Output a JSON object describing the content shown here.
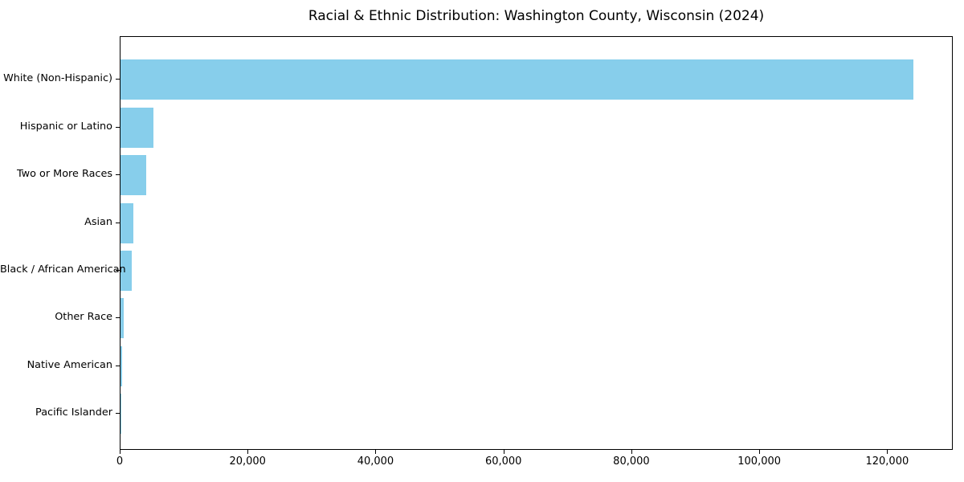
{
  "title": "Racial & Ethnic Distribution: Washington County, Wisconsin (2024)",
  "chart_data": {
    "type": "bar",
    "orientation": "horizontal",
    "title": "Racial & Ethnic Distribution: Washington County, Wisconsin (2024)",
    "xlabel": "",
    "ylabel": "",
    "categories": [
      "White (Non-Hispanic)",
      "Hispanic or Latino",
      "Two or More Races",
      "Asian",
      "Black / African American",
      "Other Race",
      "Native American",
      "Pacific Islander"
    ],
    "values": [
      124000,
      5200,
      4000,
      2000,
      1800,
      550,
      250,
      60
    ],
    "xlim": [
      0,
      130000
    ],
    "x_ticks": [
      0,
      20000,
      40000,
      60000,
      80000,
      100000,
      120000
    ],
    "x_tick_labels": [
      "0",
      "20,000",
      "40,000",
      "60,000",
      "80,000",
      "100,000",
      "120,000"
    ],
    "bar_color": "#87CEEB",
    "grid": false,
    "legend": "none",
    "background_color": "#FFFFFF",
    "axis_color": "#000000",
    "text_color": "#000000"
  }
}
